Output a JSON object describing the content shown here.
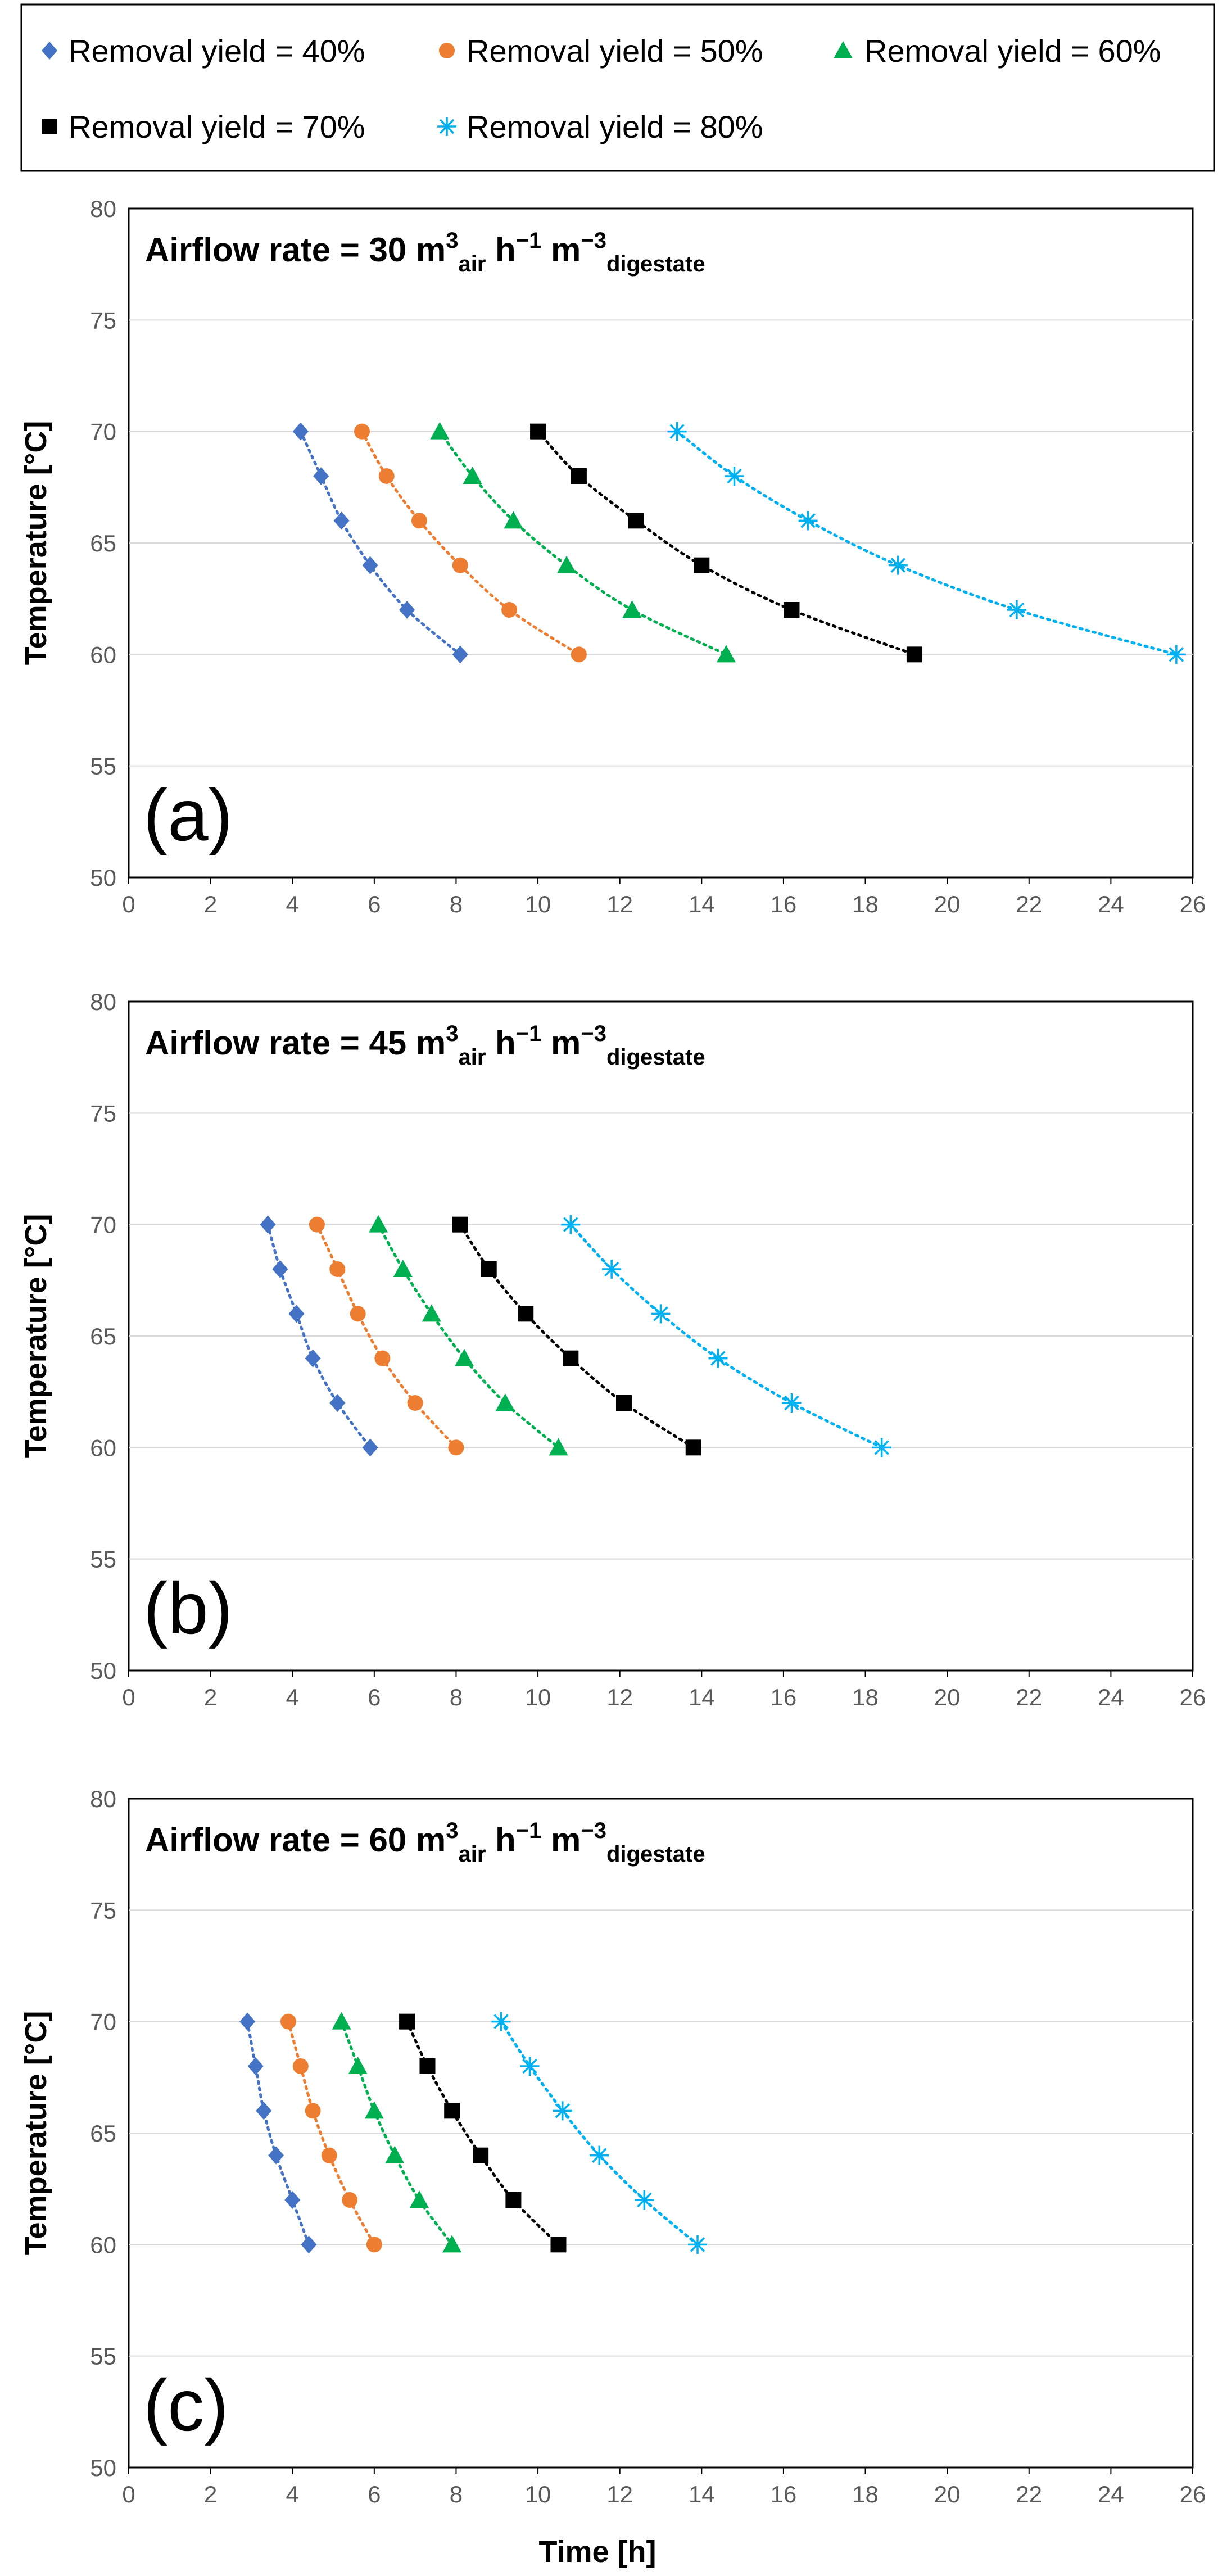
{
  "legend": [
    {
      "label": "Removal yield = 40%",
      "series": "40",
      "color": "#4472C4",
      "marker": "diamond"
    },
    {
      "label": "Removal yield = 50%",
      "series": "50",
      "color": "#ED7D31",
      "marker": "circle"
    },
    {
      "label": "Removal yield = 60%",
      "series": "60",
      "color": "#00B050",
      "marker": "triangle"
    },
    {
      "label": "Removal yield = 70%",
      "series": "70",
      "color": "#000000",
      "marker": "square"
    },
    {
      "label": "Removal yield = 80%",
      "series": "80",
      "color": "#00B0F0",
      "marker": "star"
    }
  ],
  "chart_data": [
    {
      "type": "scatter",
      "panel_label": "(a)",
      "title": {
        "prefix": "Airflow rate = 30 m",
        "sup1": "3",
        "sub1": "air",
        "mid": " h",
        "sup2": "−1",
        "mid2": " m",
        "sup3": "−3",
        "sub2": "digestate"
      },
      "xlabel": "",
      "ylabel": "Temperature [°C]",
      "xlim": [
        0,
        26
      ],
      "ylim": [
        50,
        80
      ],
      "xticks": [
        0,
        2,
        4,
        6,
        8,
        10,
        12,
        14,
        16,
        18,
        20,
        22,
        24,
        26
      ],
      "yticks": [
        50,
        55,
        60,
        65,
        70,
        75,
        80
      ],
      "grid": true,
      "series": [
        {
          "name": "Removal yield = 40%",
          "id": "40",
          "x": [
            4.2,
            4.7,
            5.2,
            5.9,
            6.8,
            8.1
          ],
          "y": [
            70,
            68,
            66,
            64,
            62,
            60
          ]
        },
        {
          "name": "Removal yield = 50%",
          "id": "50",
          "x": [
            5.7,
            6.3,
            7.1,
            8.1,
            9.3,
            11.0
          ],
          "y": [
            70,
            68,
            66,
            64,
            62,
            60
          ]
        },
        {
          "name": "Removal yield = 60%",
          "id": "60",
          "x": [
            7.6,
            8.4,
            9.4,
            10.7,
            12.3,
            14.6
          ],
          "y": [
            70,
            68,
            66,
            64,
            62,
            60
          ]
        },
        {
          "name": "Removal yield = 70%",
          "id": "70",
          "x": [
            10.0,
            11.0,
            12.4,
            14.0,
            16.2,
            19.2
          ],
          "y": [
            70,
            68,
            66,
            64,
            62,
            60
          ]
        },
        {
          "name": "Removal yield = 80%",
          "id": "80",
          "x": [
            13.4,
            14.8,
            16.6,
            18.8,
            21.7,
            25.6
          ],
          "y": [
            70,
            68,
            66,
            64,
            62,
            60
          ]
        }
      ]
    },
    {
      "type": "scatter",
      "panel_label": "(b)",
      "title": {
        "prefix": "Airflow rate = 45 m",
        "sup1": "3",
        "sub1": "air",
        "mid": " h",
        "sup2": "−1",
        "mid2": " m",
        "sup3": "−3",
        "sub2": "digestate"
      },
      "xlabel": "",
      "ylabel": "Temperature [°C]",
      "xlim": [
        0,
        26
      ],
      "ylim": [
        50,
        80
      ],
      "xticks": [
        0,
        2,
        4,
        6,
        8,
        10,
        12,
        14,
        16,
        18,
        20,
        22,
        24,
        26
      ],
      "yticks": [
        50,
        55,
        60,
        65,
        70,
        75,
        80
      ],
      "grid": true,
      "series": [
        {
          "name": "Removal yield = 40%",
          "id": "40",
          "x": [
            3.4,
            3.7,
            4.1,
            4.5,
            5.1,
            5.9
          ],
          "y": [
            70,
            68,
            66,
            64,
            62,
            60
          ]
        },
        {
          "name": "Removal yield = 50%",
          "id": "50",
          "x": [
            4.6,
            5.1,
            5.6,
            6.2,
            7.0,
            8.0
          ],
          "y": [
            70,
            68,
            66,
            64,
            62,
            60
          ]
        },
        {
          "name": "Removal yield = 60%",
          "id": "60",
          "x": [
            6.1,
            6.7,
            7.4,
            8.2,
            9.2,
            10.5
          ],
          "y": [
            70,
            68,
            66,
            64,
            62,
            60
          ]
        },
        {
          "name": "Removal yield = 70%",
          "id": "70",
          "x": [
            8.1,
            8.8,
            9.7,
            10.8,
            12.1,
            13.8
          ],
          "y": [
            70,
            68,
            66,
            64,
            62,
            60
          ]
        },
        {
          "name": "Removal yield = 80%",
          "id": "80",
          "x": [
            10.8,
            11.8,
            13.0,
            14.4,
            16.2,
            18.4
          ],
          "y": [
            70,
            68,
            66,
            64,
            62,
            60
          ]
        }
      ]
    },
    {
      "type": "scatter",
      "panel_label": "(c)",
      "title": {
        "prefix": "Airflow rate = 60 m",
        "sup1": "3",
        "sub1": "air",
        "mid": " h",
        "sup2": "−1",
        "mid2": " m",
        "sup3": "−3",
        "sub2": "digestate"
      },
      "xlabel": "Time [h]",
      "ylabel": "Temperature [°C]",
      "xlim": [
        0,
        26
      ],
      "ylim": [
        50,
        80
      ],
      "xticks": [
        0,
        2,
        4,
        6,
        8,
        10,
        12,
        14,
        16,
        18,
        20,
        22,
        24,
        26
      ],
      "yticks": [
        50,
        55,
        60,
        65,
        70,
        75,
        80
      ],
      "grid": true,
      "series": [
        {
          "name": "Removal yield = 40%",
          "id": "40",
          "x": [
            2.9,
            3.1,
            3.3,
            3.6,
            4.0,
            4.4
          ],
          "y": [
            70,
            68,
            66,
            64,
            62,
            60
          ]
        },
        {
          "name": "Removal yield = 50%",
          "id": "50",
          "x": [
            3.9,
            4.2,
            4.5,
            4.9,
            5.4,
            6.0
          ],
          "y": [
            70,
            68,
            66,
            64,
            62,
            60
          ]
        },
        {
          "name": "Removal yield = 60%",
          "id": "60",
          "x": [
            5.2,
            5.6,
            6.0,
            6.5,
            7.1,
            7.9
          ],
          "y": [
            70,
            68,
            66,
            64,
            62,
            60
          ]
        },
        {
          "name": "Removal yield = 70%",
          "id": "70",
          "x": [
            6.8,
            7.3,
            7.9,
            8.6,
            9.4,
            10.5
          ],
          "y": [
            70,
            68,
            66,
            64,
            62,
            60
          ]
        },
        {
          "name": "Removal yield = 80%",
          "id": "80",
          "x": [
            9.1,
            9.8,
            10.6,
            11.5,
            12.6,
            13.9
          ],
          "y": [
            70,
            68,
            66,
            64,
            62,
            60
          ]
        }
      ]
    }
  ]
}
